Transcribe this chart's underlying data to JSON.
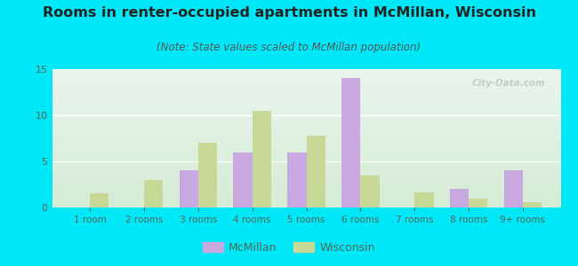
{
  "title": "Rooms in renter-occupied apartments in McMillan, Wisconsin",
  "subtitle": "(Note: State values scaled to McMillan population)",
  "categories": [
    "1 room",
    "2 rooms",
    "3 rooms",
    "4 rooms",
    "5 rooms",
    "6 rooms",
    "7 rooms",
    "8 rooms",
    "9+ rooms"
  ],
  "mcmillan_values": [
    0,
    0,
    4,
    6,
    6,
    14,
    0,
    2,
    4
  ],
  "wisconsin_values": [
    1.5,
    3,
    7,
    10.5,
    7.8,
    3.5,
    1.6,
    1.0,
    0.6
  ],
  "mcmillan_color": "#c9a8e0",
  "wisconsin_color": "#c8d896",
  "background_color": "#00e8f8",
  "plot_bg_top": "#eaf5ee",
  "plot_bg_bottom": "#d5ecd5",
  "ylim": [
    0,
    15
  ],
  "yticks": [
    0,
    5,
    10,
    15
  ],
  "bar_width": 0.35,
  "title_fontsize": 11.5,
  "subtitle_fontsize": 8.5,
  "tick_color": "#556655",
  "legend_labels": [
    "McMillan",
    "Wisconsin"
  ],
  "watermark": "City-Data.com"
}
